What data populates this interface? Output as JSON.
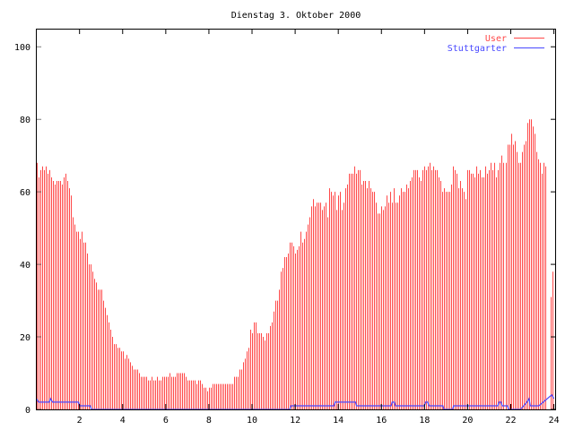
{
  "chart_data": {
    "type": "bar",
    "title": "Dienstag 3. Oktober 2000",
    "xlabel": "",
    "ylabel": "",
    "xlim": [
      0,
      24.1
    ],
    "ylim": [
      0,
      105
    ],
    "x_step_hours": 0.0833333,
    "xticks": [
      "2",
      "4",
      "6",
      "8",
      "10",
      "12",
      "14",
      "16",
      "18",
      "20",
      "22",
      "24"
    ],
    "yticks": [
      "0",
      "20",
      "40",
      "60",
      "80",
      "100"
    ],
    "grid": false,
    "legend_position": "top-right",
    "series": [
      {
        "name": "User",
        "style": "impulses",
        "color": "#ff4848",
        "values": [
          68,
          64,
          66,
          67,
          66,
          67,
          65,
          66,
          64,
          63,
          62,
          63,
          63,
          63,
          62,
          64,
          65,
          63,
          61,
          59,
          53,
          51,
          49,
          49,
          47,
          49,
          46,
          46,
          43,
          40,
          40,
          38,
          36,
          35,
          33,
          33,
          33,
          30,
          28,
          26,
          24,
          22,
          20,
          18,
          18,
          17,
          17,
          16,
          16,
          14,
          15,
          14,
          13,
          12,
          11,
          11,
          11,
          10,
          9,
          9,
          9,
          9,
          8,
          8,
          9,
          8,
          8,
          9,
          8,
          8,
          9,
          9,
          9,
          9,
          10,
          9,
          9,
          9,
          10,
          10,
          10,
          10,
          10,
          9,
          8,
          8,
          8,
          8,
          8,
          7,
          8,
          8,
          7,
          6,
          6,
          5,
          6,
          6,
          7,
          7,
          7,
          7,
          7,
          7,
          7,
          7,
          7,
          7,
          7,
          7,
          9,
          9,
          9,
          11,
          11,
          13,
          14,
          16,
          17,
          22,
          21,
          24,
          24,
          21,
          21,
          21,
          20,
          19,
          21,
          21,
          23,
          24,
          27,
          30,
          30,
          33,
          38,
          39,
          42,
          42,
          43,
          46,
          46,
          45,
          43,
          44,
          45,
          49,
          46,
          47,
          49,
          51,
          53,
          56,
          58,
          56,
          57,
          57,
          57,
          55,
          56,
          57,
          53,
          61,
          60,
          59,
          60,
          55,
          59,
          60,
          55,
          57,
          61,
          62,
          65,
          65,
          65,
          67,
          65,
          66,
          66,
          62,
          63,
          63,
          61,
          63,
          61,
          60,
          60,
          57,
          54,
          54,
          56,
          55,
          56,
          59,
          57,
          60,
          57,
          61,
          57,
          57,
          59,
          61,
          60,
          60,
          62,
          61,
          63,
          64,
          66,
          66,
          66,
          64,
          63,
          66,
          67,
          66,
          67,
          68,
          66,
          67,
          66,
          66,
          64,
          63,
          60,
          61,
          60,
          60,
          60,
          62,
          67,
          66,
          65,
          61,
          63,
          61,
          60,
          58,
          66,
          66,
          65,
          65,
          64,
          67,
          65,
          66,
          64,
          64,
          67,
          65,
          66,
          68,
          66,
          68,
          64,
          66,
          68,
          70,
          68,
          68,
          73,
          73,
          76,
          73,
          74,
          71,
          68,
          68,
          71,
          73,
          74,
          79,
          80,
          80,
          78,
          76,
          71,
          69,
          68,
          65,
          68,
          67,
          null,
          null,
          31,
          38
        ]
      },
      {
        "name": "Stuttgarter",
        "style": "lines",
        "color": "#4848ff",
        "points": [
          [
            0,
            3
          ],
          [
            0.1,
            2
          ],
          [
            0.6,
            2
          ],
          [
            0.65,
            3
          ],
          [
            0.75,
            2
          ],
          [
            1.95,
            2
          ],
          [
            2.0,
            1
          ],
          [
            2.5,
            1
          ],
          [
            2.55,
            0
          ],
          [
            11.75,
            0
          ],
          [
            11.8,
            1
          ],
          [
            13.8,
            1
          ],
          [
            13.85,
            2
          ],
          [
            14.8,
            2
          ],
          [
            14.85,
            1
          ],
          [
            16.45,
            1
          ],
          [
            16.5,
            2
          ],
          [
            16.6,
            2
          ],
          [
            16.65,
            1
          ],
          [
            18.0,
            1
          ],
          [
            18.05,
            2
          ],
          [
            18.15,
            2
          ],
          [
            18.2,
            1
          ],
          [
            18.85,
            1
          ],
          [
            18.9,
            0
          ],
          [
            19.3,
            0
          ],
          [
            19.35,
            1
          ],
          [
            21.4,
            1
          ],
          [
            21.45,
            2
          ],
          [
            21.55,
            2
          ],
          [
            21.6,
            1
          ],
          [
            21.85,
            1
          ],
          [
            21.9,
            0
          ],
          [
            22.45,
            0
          ],
          [
            22.6,
            1
          ],
          [
            22.75,
            2
          ],
          [
            22.85,
            3
          ],
          [
            22.9,
            1
          ],
          [
            23.3,
            1
          ],
          [
            23.9,
            4
          ],
          [
            24.0,
            3
          ]
        ]
      }
    ]
  }
}
